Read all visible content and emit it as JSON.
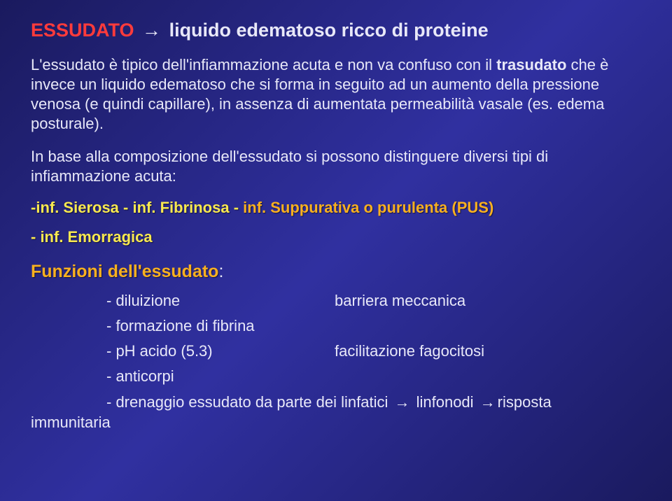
{
  "title": {
    "word1": "ESSUDATO",
    "arrow": "→",
    "rest": "liquido edematoso ricco di proteine"
  },
  "para1": {
    "pre": "L'essudato è tipico dell'infiammazione acuta e non va confuso con il ",
    "bold1": "trasudato",
    "mid": " che è invece un liquido edematoso che si forma in seguito ad un aumento della pressione venosa (e quindi capillare), in assenza di aumentata permeabilità vasale (es. edema posturale)."
  },
  "para2": "In base alla composizione dell'essudato si possono distinguere diversi tipi di infiammazione acuta:",
  "types": {
    "t1": "-inf. Sierosa",
    "t2": "   - inf. Fibrinosa - ",
    "t3": "  inf. Suppurativa o purulenta (PUS)",
    "t4": "- inf. Emorragica"
  },
  "funzioni": {
    "heading": "Funzioni dell'essudato",
    "colon": ":",
    "rows": [
      {
        "left": "- diluizione",
        "right": "barriera meccanica"
      },
      {
        "left": "- formazione di fibrina",
        "right": ""
      },
      {
        "left": "- pH acido (5.3)",
        "right": "facilitazione fagocitosi"
      },
      {
        "left": "- anticorpi",
        "right": ""
      }
    ],
    "last": {
      "pre": "- drenaggio essudato da parte dei linfatici ",
      "arrow1": "→",
      "mid": " linfonodi ",
      "arrow2": "→",
      "wrap": "risposta",
      "wrap2": "immunitaria"
    }
  },
  "colors": {
    "red": "#ff3b3b",
    "white": "#e8e8f8",
    "yellow": "#f8e850",
    "orange": "#f8b020",
    "bg_dark": "#1a1a5e",
    "bg_light": "#3030a0"
  }
}
